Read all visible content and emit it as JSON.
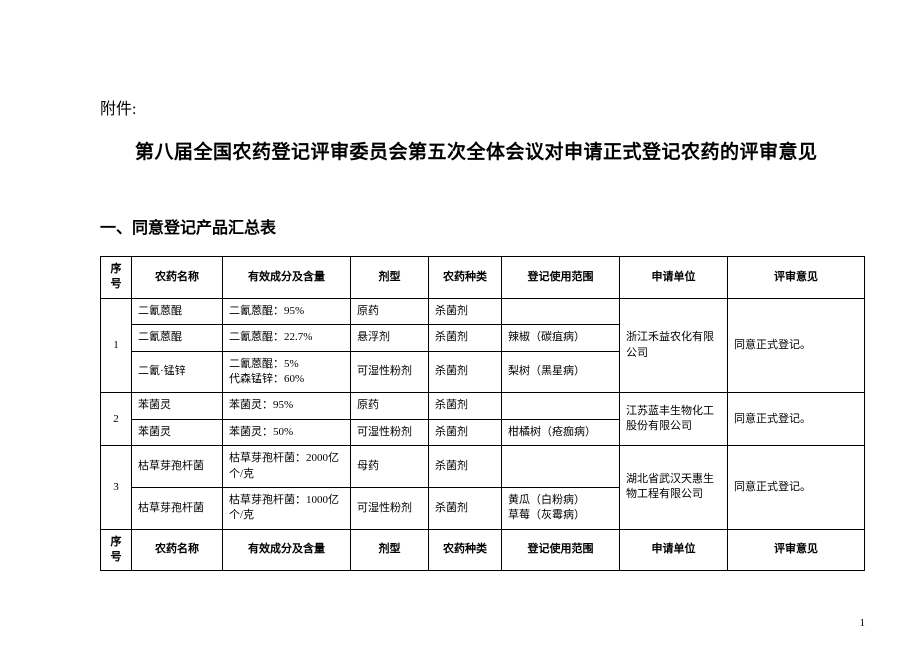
{
  "attachment_label": "附件:",
  "main_title": "第八届全国农药登记评审委员会第五次全体会议对申请正式登记农药的评审意见",
  "section_title": "一、同意登记产品汇总表",
  "columns": {
    "seq": "序号",
    "name": "农药名称",
    "ingredient": "有效成分及含量",
    "form": "剂型",
    "type": "农药种类",
    "scope": "登记使用范围",
    "applicant": "申请单位",
    "opinion": "评审意见"
  },
  "rows": [
    {
      "seq": "1",
      "name": "二氰蒽醌",
      "ingredient": "二氰蒽醌：95%",
      "form": "原药",
      "type": "杀菌剂",
      "scope": "",
      "applicant": "浙江禾益农化有限公司",
      "opinion": "同意正式登记。",
      "rowspan_seq": 3,
      "rowspan_applicant": 3,
      "rowspan_opinion": 3
    },
    {
      "name": "二氰蒽醌",
      "ingredient": "二氰蒽醌：22.7%",
      "form": "悬浮剂",
      "type": "杀菌剂",
      "scope": "辣椒（碳疽病）"
    },
    {
      "name": "二氰·锰锌",
      "ingredient": "二氰蒽醌：5%\n代森锰锌：60%",
      "form": "可湿性粉剂",
      "type": "杀菌剂",
      "scope": "梨树（黑星病）"
    },
    {
      "seq": "2",
      "name": "苯菌灵",
      "ingredient": "苯菌灵：95%",
      "form": "原药",
      "type": "杀菌剂",
      "scope": "",
      "applicant": "江苏蓝丰生物化工股份有限公司",
      "opinion": "同意正式登记。",
      "rowspan_seq": 2,
      "rowspan_applicant": 2,
      "rowspan_opinion": 2
    },
    {
      "name": "苯菌灵",
      "ingredient": "苯菌灵：50%",
      "form": "可湿性粉剂",
      "type": "杀菌剂",
      "scope": "柑橘树（疮痂病）"
    },
    {
      "seq": "3",
      "name": "枯草芽孢杆菌",
      "ingredient": "枯草芽孢杆菌：2000亿个/克",
      "form": "母药",
      "type": "杀菌剂",
      "scope": "",
      "applicant": "湖北省武汉天惠生物工程有限公司",
      "opinion": "同意正式登记。",
      "rowspan_seq": 2,
      "rowspan_applicant": 2,
      "rowspan_opinion": 2
    },
    {
      "name": "枯草芽孢杆菌",
      "ingredient": "枯草芽孢杆菌：1000亿个/克",
      "form": "可湿性粉剂",
      "type": "杀菌剂",
      "scope": "黄瓜（白粉病）\n草莓（灰霉病）"
    }
  ],
  "page_number": "1"
}
